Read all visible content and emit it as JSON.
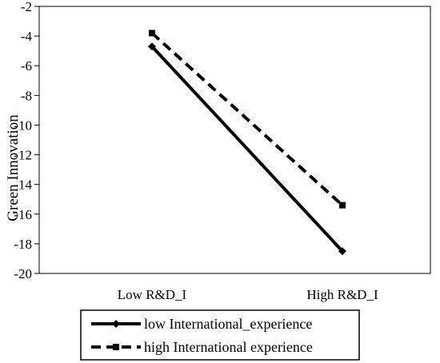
{
  "chart_data": {
    "type": "line",
    "categories": [
      "Low R&D_I",
      "High R&D_I"
    ],
    "series": [
      {
        "name": "low International_experience",
        "values": [
          -4.7,
          -18.5
        ],
        "style": "solid",
        "marker": "diamond",
        "color": "#000000"
      },
      {
        "name": "high International experience",
        "values": [
          -3.8,
          -15.4
        ],
        "style": "dashed",
        "marker": "square",
        "color": "#000000"
      }
    ],
    "ylabel": "Green Innovation",
    "xlabel": "",
    "ylim": [
      -20,
      -2
    ],
    "yticks": [
      -2,
      -4,
      -6,
      -8,
      -10,
      -12,
      -14,
      -16,
      -18,
      -20
    ],
    "grid": false,
    "legend_position": "bottom"
  }
}
